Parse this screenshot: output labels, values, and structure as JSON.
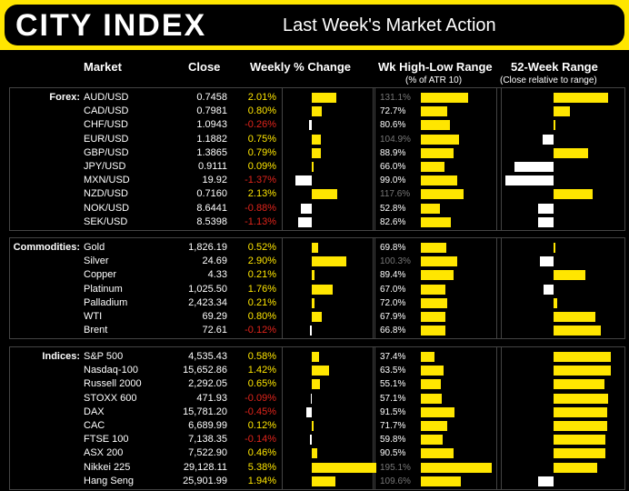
{
  "header": {
    "logo": "CITY INDEX",
    "title": "Last Week's Market Action"
  },
  "columns": {
    "market": "Market",
    "close": "Close",
    "weekly": "Weekly % Change",
    "range": "Wk High-Low Range",
    "range_sub": "(% of ATR 10)",
    "week52": "52-Week Range",
    "week52_sub": "(Close relative to range)"
  },
  "colors": {
    "accent": "#ffe600",
    "negative": "#e0241b",
    "background": "#000000"
  },
  "chart_data": {
    "type": "table",
    "sections": [
      {
        "label": "Forex:",
        "rows": [
          {
            "market": "AUD/USD",
            "close": "0.7458",
            "pct_label": "2.01%",
            "pct": 2.01,
            "range_label": "131.1%",
            "range": 131.1,
            "w52": 0.95
          },
          {
            "market": "CAD/USD",
            "close": "0.7981",
            "pct_label": "0.80%",
            "pct": 0.8,
            "range_label": "72.7%",
            "range": 72.7,
            "w52": 0.29
          },
          {
            "market": "CHF/USD",
            "close": "1.0943",
            "pct_label": "-0.26%",
            "pct": -0.26,
            "range_label": "80.6%",
            "range": 80.6,
            "w52": 0.02
          },
          {
            "market": "EUR/USD",
            "close": "1.1882",
            "pct_label": "0.75%",
            "pct": 0.75,
            "range_label": "104.9%",
            "range": 104.9,
            "w52": -0.19
          },
          {
            "market": "GBP/USD",
            "close": "1.3865",
            "pct_label": "0.79%",
            "pct": 0.79,
            "range_label": "88.9%",
            "range": 88.9,
            "w52": 0.6
          },
          {
            "market": "JPY/USD",
            "close": "0.9111",
            "pct_label": "0.09%",
            "pct": 0.09,
            "range_label": "66.0%",
            "range": 66.0,
            "w52": -0.68
          },
          {
            "market": "MXN/USD",
            "close": "19.92",
            "pct_label": "-1.37%",
            "pct": -1.37,
            "range_label": "99.0%",
            "range": 99.0,
            "w52": -0.84
          },
          {
            "market": "NZD/USD",
            "close": "0.7160",
            "pct_label": "2.13%",
            "pct": 2.13,
            "range_label": "117.6%",
            "range": 117.6,
            "w52": 0.68
          },
          {
            "market": "NOK/USD",
            "close": "8.6441",
            "pct_label": "-0.88%",
            "pct": -0.88,
            "range_label": "52.8%",
            "range": 52.8,
            "w52": -0.27
          },
          {
            "market": "SEK/USD",
            "close": "8.5398",
            "pct_label": "-1.13%",
            "pct": -1.13,
            "range_label": "82.6%",
            "range": 82.6,
            "w52": -0.27
          }
        ]
      },
      {
        "label": "Commodities:",
        "rows": [
          {
            "market": "Gold",
            "close": "1,826.19",
            "pct_label": "0.52%",
            "pct": 0.52,
            "range_label": "69.8%",
            "range": 69.8,
            "w52": 0.02
          },
          {
            "market": "Silver",
            "close": "24.69",
            "pct_label": "2.90%",
            "pct": 2.9,
            "range_label": "100.3%",
            "range": 100.3,
            "w52": -0.24
          },
          {
            "market": "Copper",
            "close": "4.33",
            "pct_label": "0.21%",
            "pct": 0.21,
            "range_label": "89.4%",
            "range": 89.4,
            "w52": 0.56
          },
          {
            "market": "Platinum",
            "close": "1,025.50",
            "pct_label": "1.76%",
            "pct": 1.76,
            "range_label": "67.0%",
            "range": 67.0,
            "w52": -0.18
          },
          {
            "market": "Palladium",
            "close": "2,423.34",
            "pct_label": "0.21%",
            "pct": 0.21,
            "range_label": "72.0%",
            "range": 72.0,
            "w52": 0.06
          },
          {
            "market": "WTI",
            "close": "69.29",
            "pct_label": "0.80%",
            "pct": 0.8,
            "range_label": "67.9%",
            "range": 67.9,
            "w52": 0.73
          },
          {
            "market": "Brent",
            "close": "72.61",
            "pct_label": "-0.12%",
            "pct": -0.12,
            "range_label": "66.8%",
            "range": 66.8,
            "w52": 0.82
          }
        ]
      },
      {
        "label": "Indices:",
        "rows": [
          {
            "market": "S&P 500",
            "close": "4,535.43",
            "pct_label": "0.58%",
            "pct": 0.58,
            "range_label": "37.4%",
            "range": 37.4,
            "w52": 1.0
          },
          {
            "market": "Nasdaq-100",
            "close": "15,652.86",
            "pct_label": "1.42%",
            "pct": 1.42,
            "range_label": "63.5%",
            "range": 63.5,
            "w52": 1.0
          },
          {
            "market": "Russell 2000",
            "close": "2,292.05",
            "pct_label": "0.65%",
            "pct": 0.65,
            "range_label": "55.1%",
            "range": 55.1,
            "w52": 0.89
          },
          {
            "market": "STOXX 600",
            "close": "471.93",
            "pct_label": "-0.09%",
            "pct": -0.09,
            "range_label": "57.1%",
            "range": 57.1,
            "w52": 0.95
          },
          {
            "market": "DAX",
            "close": "15,781.20",
            "pct_label": "-0.45%",
            "pct": -0.45,
            "range_label": "91.5%",
            "range": 91.5,
            "w52": 0.93
          },
          {
            "market": "CAC",
            "close": "6,689.99",
            "pct_label": "0.12%",
            "pct": 0.12,
            "range_label": "71.7%",
            "range": 71.7,
            "w52": 0.94
          },
          {
            "market": "FTSE 100",
            "close": "7,138.35",
            "pct_label": "-0.14%",
            "pct": -0.14,
            "range_label": "59.8%",
            "range": 59.8,
            "w52": 0.9
          },
          {
            "market": "ASX 200",
            "close": "7,522.90",
            "pct_label": "0.46%",
            "pct": 0.46,
            "range_label": "90.5%",
            "range": 90.5,
            "w52": 0.9
          },
          {
            "market": "Nikkei 225",
            "close": "29,128.11",
            "pct_label": "5.38%",
            "pct": 5.38,
            "range_label": "195.1%",
            "range": 195.1,
            "w52": 0.76
          },
          {
            "market": "Hang Seng",
            "close": "25,901.99",
            "pct_label": "1.94%",
            "pct": 1.94,
            "range_label": "109.6%",
            "range": 109.6,
            "w52": -0.27
          }
        ]
      }
    ]
  }
}
